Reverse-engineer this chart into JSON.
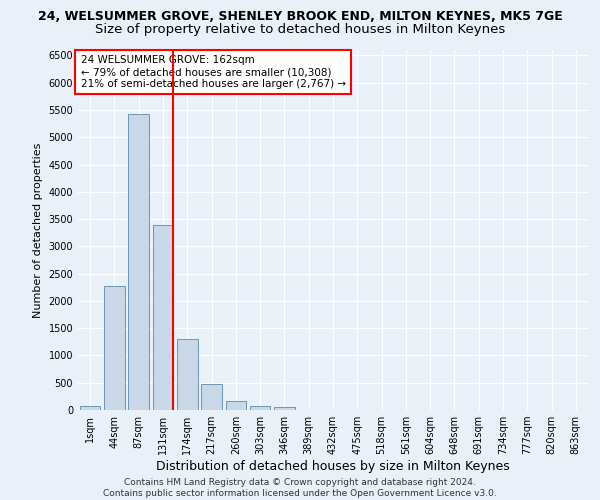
{
  "title1": "24, WELSUMMER GROVE, SHENLEY BROOK END, MILTON KEYNES, MK5 7GE",
  "title2": "Size of property relative to detached houses in Milton Keynes",
  "xlabel": "Distribution of detached houses by size in Milton Keynes",
  "ylabel": "Number of detached properties",
  "footnote": "Contains HM Land Registry data © Crown copyright and database right 2024.\nContains public sector information licensed under the Open Government Licence v3.0.",
  "bar_labels": [
    "1sqm",
    "44sqm",
    "87sqm",
    "131sqm",
    "174sqm",
    "217sqm",
    "260sqm",
    "303sqm",
    "346sqm",
    "389sqm",
    "432sqm",
    "475sqm",
    "518sqm",
    "561sqm",
    "604sqm",
    "648sqm",
    "691sqm",
    "734sqm",
    "777sqm",
    "820sqm",
    "863sqm"
  ],
  "bar_values": [
    70,
    2270,
    5420,
    3390,
    1300,
    480,
    160,
    80,
    55,
    0,
    0,
    0,
    0,
    0,
    0,
    0,
    0,
    0,
    0,
    0,
    0
  ],
  "bar_color": "#c8d8e8",
  "bar_edge_color": "#5a8aaa",
  "vline_x_index": 3,
  "vline_color": "red",
  "annotation_text": "24 WELSUMMER GROVE: 162sqm\n← 79% of detached houses are smaller (10,308)\n21% of semi-detached houses are larger (2,767) →",
  "annotation_box_color": "white",
  "annotation_box_edge": "red",
  "ylim": [
    0,
    6600
  ],
  "yticks": [
    0,
    500,
    1000,
    1500,
    2000,
    2500,
    3000,
    3500,
    4000,
    4500,
    5000,
    5500,
    6000,
    6500
  ],
  "bg_color": "#eaf0f8",
  "grid_color": "white",
  "title1_fontsize": 9,
  "title2_fontsize": 9.5,
  "xlabel_fontsize": 9,
  "ylabel_fontsize": 8,
  "tick_fontsize": 7,
  "annot_fontsize": 7.5,
  "footnote_fontsize": 6.5
}
